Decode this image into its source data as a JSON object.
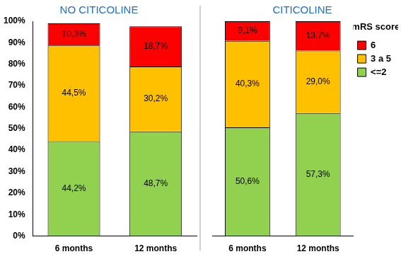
{
  "chart_data": [
    {
      "type": "bar",
      "title": "NO CITICOLINE",
      "categories": [
        "6 months",
        "12 months"
      ],
      "series": [
        {
          "name": "<=2",
          "color": "#92d050",
          "values": [
            44.2,
            48.7
          ],
          "value_labels": [
            "44,2%",
            "48,7%"
          ]
        },
        {
          "name": "3 a 5",
          "color": "#ffc000",
          "values": [
            44.5,
            30.2
          ],
          "value_labels": [
            "44,5%",
            "30,2%"
          ]
        },
        {
          "name": "6",
          "color": "#ff0000",
          "values": [
            10.3,
            18.7
          ],
          "value_labels": [
            "10,3%",
            "18,7%"
          ]
        }
      ],
      "stacked": true,
      "data_labels": true,
      "grid": false,
      "ylim": [
        0,
        100
      ],
      "yticks": [
        {
          "value": 0,
          "label": "0%"
        },
        {
          "value": 10,
          "label": "10%"
        },
        {
          "value": 20,
          "label": "20%"
        },
        {
          "value": 30,
          "label": "30%"
        },
        {
          "value": 40,
          "label": "40%"
        },
        {
          "value": 50,
          "label": "50%"
        },
        {
          "value": 60,
          "label": "60%"
        },
        {
          "value": 70,
          "label": "70%"
        },
        {
          "value": 80,
          "label": "80%"
        },
        {
          "value": 90,
          "label": "90%"
        },
        {
          "value": 100,
          "label": "100%"
        }
      ]
    },
    {
      "type": "bar",
      "title": "CITICOLINE",
      "categories": [
        "6 months",
        "12 months"
      ],
      "series": [
        {
          "name": "<=2",
          "color": "#92d050",
          "values": [
            50.6,
            57.3
          ],
          "value_labels": [
            "50,6%",
            "57,3%"
          ]
        },
        {
          "name": "3 a 5",
          "color": "#ffc000",
          "values": [
            40.3,
            29.0
          ],
          "value_labels": [
            "40,3%",
            "29,0%"
          ]
        },
        {
          "name": "6",
          "color": "#ff0000",
          "values": [
            9.1,
            13.7
          ],
          "value_labels": [
            "9,1%",
            "13,7%"
          ]
        }
      ],
      "stacked": true,
      "data_labels": true,
      "grid": false,
      "ylim": [
        0,
        100
      ],
      "tick_labels": "x",
      "legend": "right",
      "legend_title": "mRS score"
    }
  ]
}
